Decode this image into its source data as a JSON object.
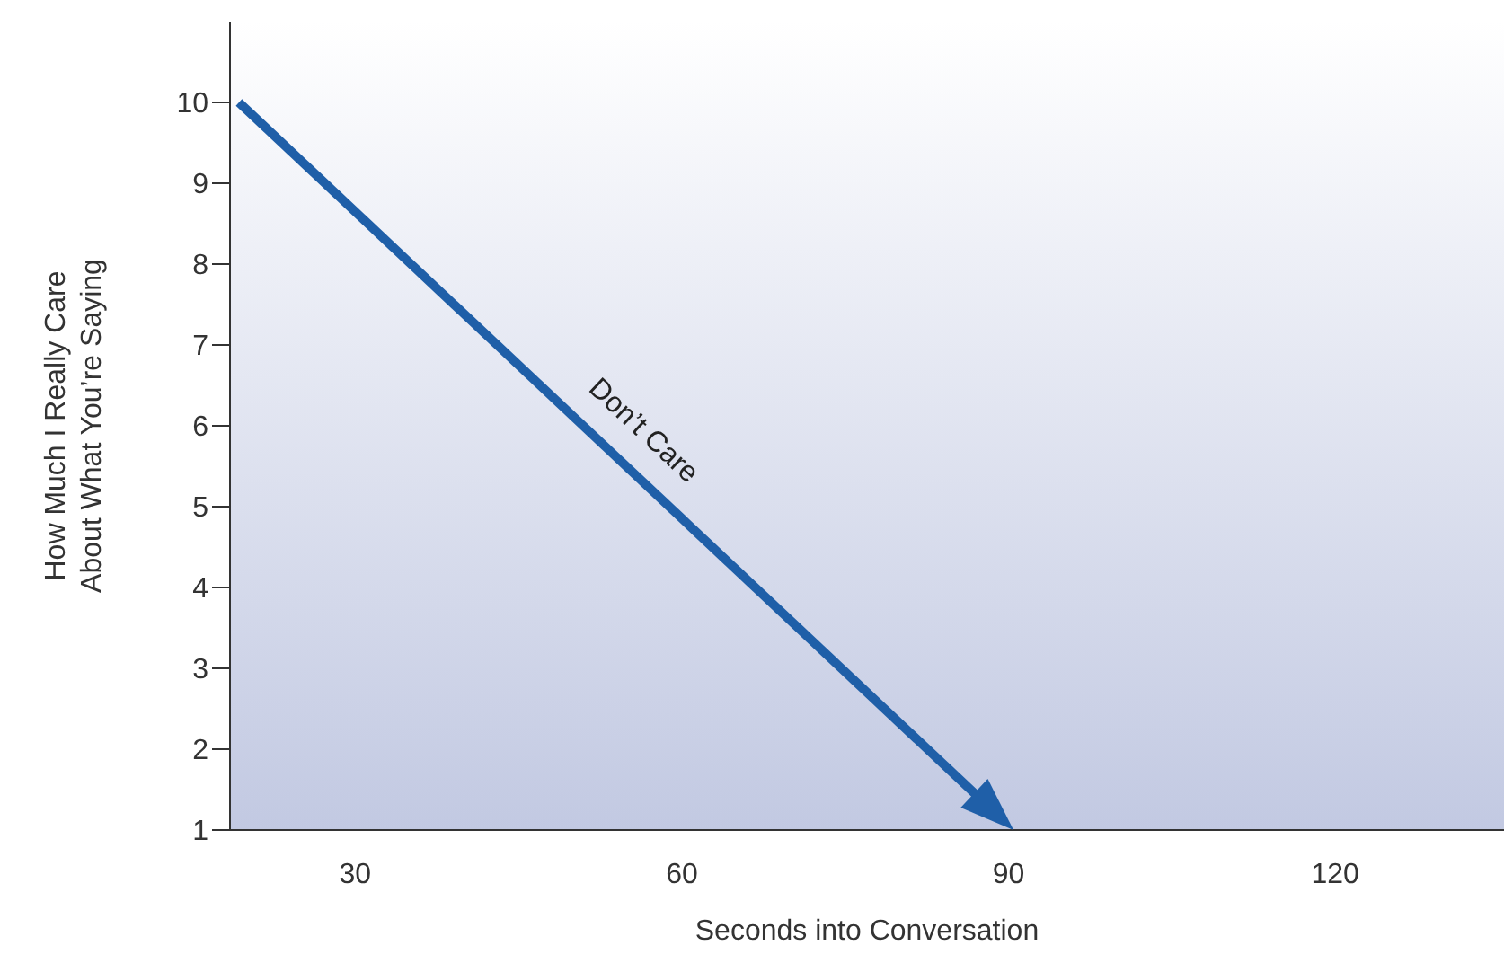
{
  "chart_data": {
    "type": "line",
    "xlabel": "Seconds into Conversation",
    "ylabel": "How Much I Really Care\nAbout What You’re Saying",
    "xlim": [
      18.5,
      135.5
    ],
    "xticks": [
      30,
      60,
      90,
      120
    ],
    "ylim": [
      1,
      11
    ],
    "yticks": [
      1,
      2,
      3,
      4,
      5,
      6,
      7,
      8,
      9,
      10
    ],
    "annotations": [
      "Don’t Care"
    ],
    "grid": false
  }
}
